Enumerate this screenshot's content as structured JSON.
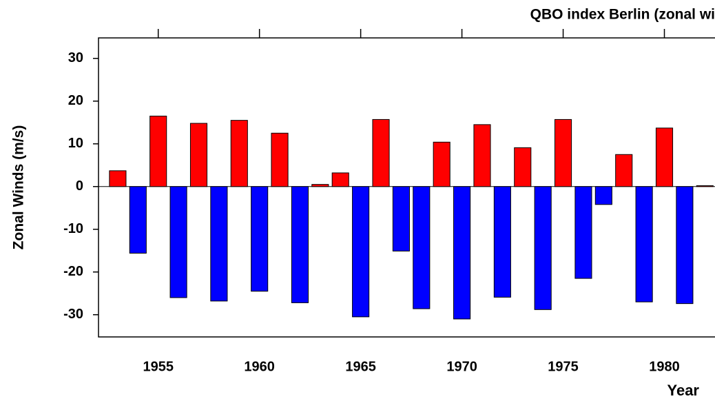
{
  "chart_data": {
    "type": "bar",
    "title": "QBO index Berlin (zonal wi",
    "xlabel": "Year",
    "ylabel": "Zonal Winds (m/s)",
    "x": [
      1953,
      1954,
      1955,
      1956,
      1957,
      1958,
      1959,
      1960,
      1961,
      1962,
      1963,
      1964,
      1965,
      1966,
      1967,
      1968,
      1969,
      1970,
      1971,
      1972,
      1973,
      1974,
      1975,
      1976,
      1977,
      1978,
      1979,
      1980,
      1981,
      1982
    ],
    "values": [
      3.7,
      -15.6,
      16.5,
      -26,
      14.8,
      -26.8,
      15.5,
      -24.5,
      12.5,
      -27.2,
      0.5,
      3.2,
      -30.5,
      15.7,
      -15.1,
      -28.6,
      10.4,
      -31,
      14.5,
      -25.9,
      9.1,
      -28.8,
      15.7,
      -21.5,
      -4.2,
      7.5,
      -27,
      13.7,
      -27.4,
      0.2
    ],
    "positive_color": "#ff0000",
    "negative_color": "#0000ff",
    "xlim": [
      1952.05,
      1982.5
    ],
    "xticks": [
      1955,
      1960,
      1965,
      1970,
      1975,
      1980
    ],
    "ylim": [
      -35.2,
      34.8
    ],
    "yticks": [
      -30,
      -20,
      -10,
      0,
      10,
      20,
      30
    ]
  }
}
